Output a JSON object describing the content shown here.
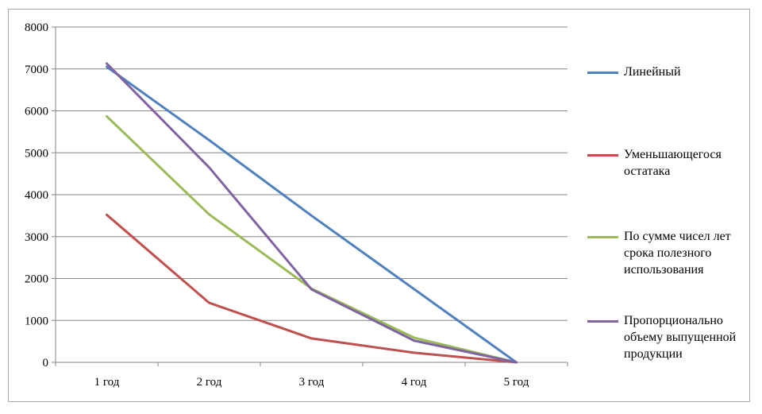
{
  "chart_data": {
    "type": "line",
    "categories": [
      "1 год",
      "2 год",
      "3 год",
      "4 год",
      "5 год"
    ],
    "ylim": [
      0,
      8000
    ],
    "yticks": [
      0,
      1000,
      2000,
      3000,
      4000,
      5000,
      6000,
      7000,
      8000
    ],
    "grid": true,
    "legend_position": "right",
    "series": [
      {
        "name": "Линейный",
        "color": "#4f81bd",
        "values": [
          7050,
          5300,
          3500,
          1750,
          0
        ]
      },
      {
        "name": "Уменьшающегося остатака",
        "color": "#c0504d",
        "values": [
          3520,
          1420,
          570,
          230,
          0
        ]
      },
      {
        "name": "По сумме чисел лет срока полезного использования",
        "color": "#9bbb59",
        "values": [
          5870,
          3530,
          1760,
          590,
          0
        ]
      },
      {
        "name": "Пропорционально объему выпущенной продукции",
        "color": "#8064a2",
        "values": [
          7130,
          4650,
          1740,
          520,
          0
        ]
      }
    ]
  }
}
